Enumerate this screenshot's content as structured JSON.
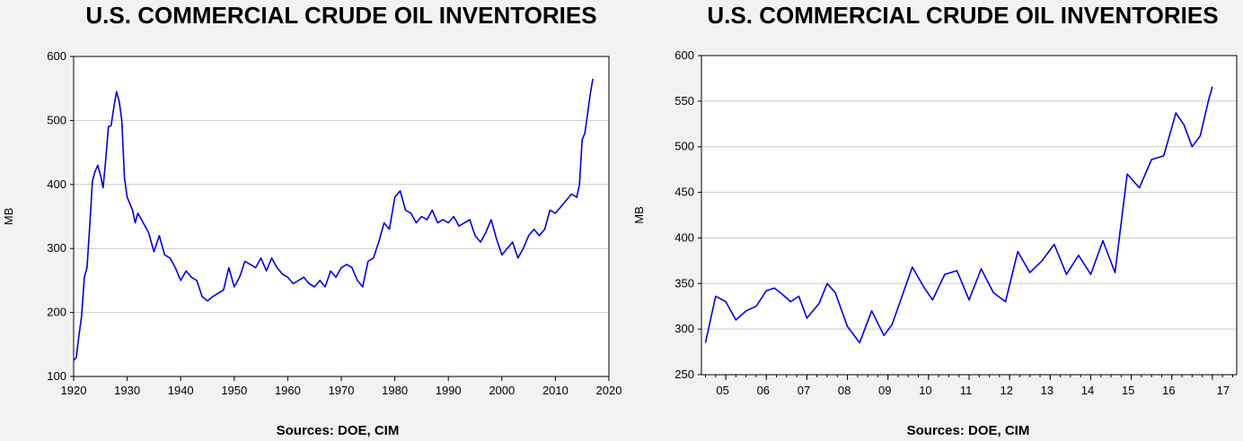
{
  "chart_data": [
    {
      "type": "line",
      "title": "U.S. COMMERCIAL CRUDE OIL INVENTORIES",
      "ylabel": "MB",
      "xlabel": "",
      "source": "Sources:  DOE, CIM",
      "xlim": [
        1920,
        2020
      ],
      "ylim": [
        100,
        600
      ],
      "xticks": [
        1920,
        1930,
        1940,
        1950,
        1960,
        1970,
        1980,
        1990,
        2000,
        2010,
        2020
      ],
      "yticks": [
        100,
        200,
        300,
        400,
        500,
        600
      ],
      "grid": true,
      "line_color": "#0000e0",
      "series": [
        {
          "x": [
            1920.0,
            1920.5,
            1921.0,
            1921.5,
            1922.0,
            1922.5,
            1923.0,
            1923.5,
            1924.0,
            1924.5,
            1925.0,
            1925.5,
            1926.0,
            1926.5,
            1927.0,
            1927.5,
            1928.0,
            1928.5,
            1929.0,
            1929.5,
            1930.0,
            1930.5,
            1931.0,
            1931.5,
            1932.0,
            1933.0,
            1934.0,
            1935.0,
            1936.0,
            1937.0,
            1938.0,
            1939.0,
            1940.0,
            1941.0,
            1942.0,
            1943.0,
            1944.0,
            1945.0,
            1946.0,
            1947.0,
            1948.0,
            1949.0,
            1950.0,
            1951.0,
            1952.0,
            1953.0,
            1954.0,
            1955.0,
            1956.0,
            1957.0,
            1958.0,
            1959.0,
            1960.0,
            1961.0,
            1962.0,
            1963.0,
            1964.0,
            1965.0,
            1966.0,
            1967.0,
            1968.0,
            1969.0,
            1970.0,
            1971.0,
            1972.0,
            1973.0,
            1974.0,
            1975.0,
            1976.0,
            1977.0,
            1978.0,
            1979.0,
            1980.0,
            1981.0,
            1982.0,
            1983.0,
            1984.0,
            1985.0,
            1986.0,
            1987.0,
            1988.0,
            1989.0,
            1990.0,
            1991.0,
            1992.0,
            1993.0,
            1994.0,
            1995.0,
            1996.0,
            1997.0,
            1998.0,
            1999.0,
            2000.0,
            2001.0,
            2002.0,
            2003.0,
            2004.0,
            2005.0,
            2006.0,
            2007.0,
            2008.0,
            2009.0,
            2010.0,
            2011.0,
            2012.0,
            2013.0,
            2014.0,
            2014.5,
            2015.0,
            2015.5,
            2016.0,
            2016.5,
            2017.0
          ],
          "y": [
            125,
            130,
            165,
            195,
            255,
            270,
            335,
            405,
            420,
            430,
            415,
            395,
            440,
            490,
            492,
            520,
            545,
            530,
            500,
            410,
            380,
            370,
            360,
            340,
            355,
            340,
            325,
            295,
            320,
            290,
            285,
            270,
            250,
            265,
            255,
            250,
            225,
            218,
            225,
            230,
            235,
            270,
            240,
            255,
            280,
            275,
            270,
            285,
            265,
            285,
            270,
            260,
            255,
            245,
            250,
            255,
            245,
            240,
            250,
            240,
            265,
            255,
            270,
            275,
            270,
            250,
            240,
            280,
            285,
            310,
            340,
            330,
            380,
            390,
            360,
            355,
            340,
            350,
            345,
            360,
            340,
            345,
            340,
            350,
            335,
            340,
            345,
            320,
            310,
            325,
            345,
            315,
            290,
            300,
            310,
            285,
            300,
            320,
            330,
            320,
            330,
            360,
            355,
            365,
            375,
            385,
            380,
            400,
            470,
            480,
            510,
            540,
            565
          ]
        }
      ]
    },
    {
      "type": "line",
      "title": "U.S. COMMERCIAL CRUDE OIL INVENTORIES",
      "ylabel": "MB",
      "xlabel": "",
      "source": "Sources:  DOE, CIM",
      "xlim": [
        2004.4,
        2017.6
      ],
      "ylim": [
        250,
        600
      ],
      "xtick_labels": [
        "05",
        "06",
        "07",
        "08",
        "09",
        "10",
        "11",
        "12",
        "13",
        "14",
        "15",
        "16",
        "17"
      ],
      "yticks": [
        250,
        300,
        350,
        400,
        450,
        500,
        550,
        600
      ],
      "grid": true,
      "line_color": "#0000e0",
      "series": [
        {
          "x": [
            2004.5,
            2004.75,
            2005.0,
            2005.25,
            2005.5,
            2005.75,
            2006.0,
            2006.2,
            2006.4,
            2006.6,
            2006.8,
            2007.0,
            2007.3,
            2007.5,
            2007.7,
            2008.0,
            2008.3,
            2008.6,
            2008.9,
            2009.1,
            2009.3,
            2009.6,
            2009.9,
            2010.1,
            2010.4,
            2010.7,
            2011.0,
            2011.3,
            2011.6,
            2011.9,
            2012.2,
            2012.5,
            2012.8,
            2013.1,
            2013.4,
            2013.7,
            2014.0,
            2014.3,
            2014.6,
            2014.9,
            2015.2,
            2015.5,
            2015.8,
            2016.1,
            2016.3,
            2016.5,
            2016.7,
            2016.9,
            2017.0
          ],
          "y": [
            285,
            336,
            330,
            310,
            320,
            325,
            342,
            345,
            338,
            330,
            336,
            312,
            328,
            350,
            340,
            303,
            285,
            320,
            293,
            305,
            330,
            368,
            345,
            332,
            360,
            364,
            332,
            366,
            340,
            330,
            385,
            362,
            375,
            393,
            360,
            381,
            360,
            397,
            362,
            470,
            455,
            486,
            490,
            537,
            524,
            500,
            512,
            550,
            566
          ]
        }
      ]
    }
  ]
}
